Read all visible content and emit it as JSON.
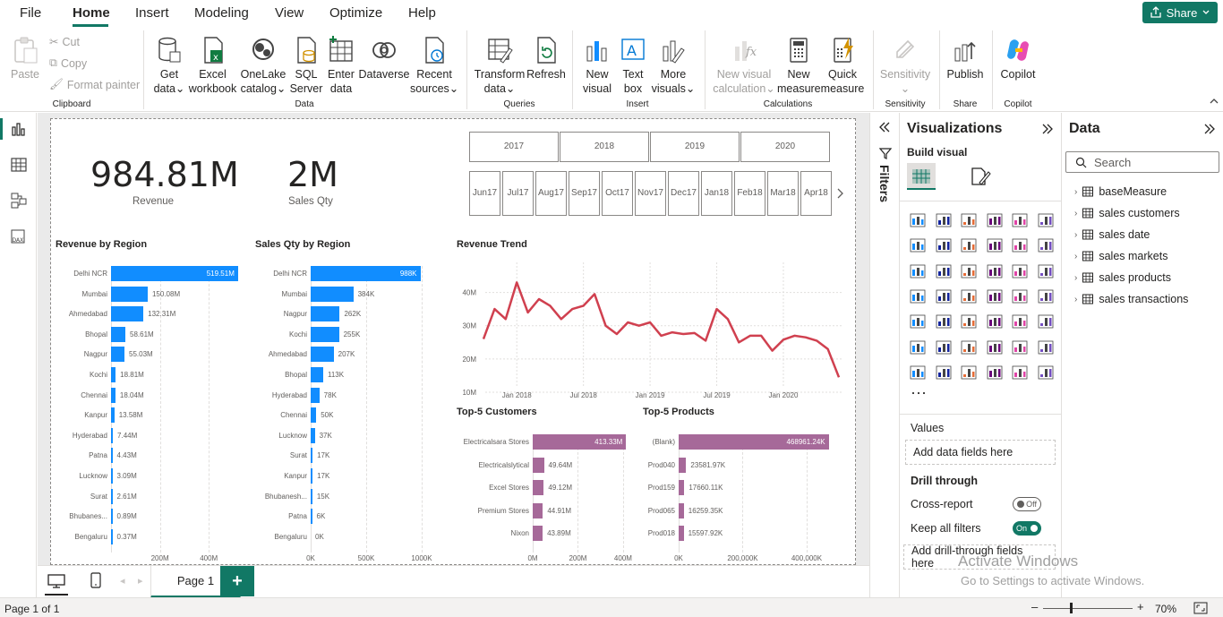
{
  "menu": {
    "items": [
      "File",
      "Home",
      "Insert",
      "Modeling",
      "View",
      "Optimize",
      "Help"
    ],
    "active": "Home",
    "share_label": "Share"
  },
  "ribbon": {
    "clipboard": {
      "paste": "Paste",
      "cut": "Cut",
      "copy": "Copy",
      "format_painter": "Format painter",
      "group": "Clipboard"
    },
    "data": {
      "get_data": [
        "Get",
        "data"
      ],
      "excel": [
        "Excel",
        "workbook"
      ],
      "onelake": [
        "OneLake",
        "catalog"
      ],
      "sql": [
        "SQL",
        "Server"
      ],
      "enter": [
        "Enter",
        "data"
      ],
      "dataverse": "Dataverse",
      "recent": [
        "Recent",
        "sources"
      ],
      "group": "Data"
    },
    "queries": {
      "transform": [
        "Transform",
        "data"
      ],
      "refresh": "Refresh",
      "group": "Queries"
    },
    "insert": {
      "new_visual": [
        "New",
        "visual"
      ],
      "text_box": [
        "Text",
        "box"
      ],
      "more_visuals": [
        "More",
        "visuals"
      ],
      "group": "Insert"
    },
    "calculations": {
      "new_visual_calc": [
        "New visual",
        "calculation"
      ],
      "new_measure": [
        "New",
        "measure"
      ],
      "quick_measure": [
        "Quick",
        "measure"
      ],
      "group": "Calculations"
    },
    "sensitivity": {
      "label": "Sensitivity",
      "group": "Sensitivity"
    },
    "share": {
      "publish": "Publish",
      "group": "Share"
    },
    "copilot": {
      "label": "Copilot",
      "group": "Copilot"
    }
  },
  "kpis": [
    {
      "value": "984.81M",
      "label": "Revenue"
    },
    {
      "value": "2M",
      "label": "Sales Qty"
    }
  ],
  "year_slicer": [
    "2017",
    "2018",
    "2019",
    "2020"
  ],
  "month_slicer": [
    [
      "Jun",
      "17"
    ],
    [
      "Jul",
      "17"
    ],
    [
      "Aug",
      "17"
    ],
    [
      "Sep",
      "17"
    ],
    [
      "Oct",
      "17"
    ],
    [
      "Nov",
      "17"
    ],
    [
      "Dec",
      "17"
    ],
    [
      "Jan",
      "18"
    ],
    [
      "Feb",
      "18"
    ],
    [
      "Mar",
      "18"
    ],
    [
      "Apr",
      "18"
    ]
  ],
  "chart_data": [
    {
      "type": "bar",
      "title": "Revenue by Region",
      "categories": [
        "Delhi NCR",
        "Mumbai",
        "Ahmedabad",
        "Bhopal",
        "Nagpur",
        "Kochi",
        "Chennai",
        "Kanpur",
        "Hyderabad",
        "Patna",
        "Lucknow",
        "Surat",
        "Bhubanes...",
        "Bengaluru"
      ],
      "values": [
        519.51,
        150.08,
        132.31,
        58.61,
        55.03,
        18.81,
        18.04,
        13.58,
        7.44,
        4.43,
        3.09,
        2.61,
        0.89,
        0.37
      ],
      "labels": [
        "519.51M",
        "150.08M",
        "132.31M",
        "58.61M",
        "55.03M",
        "18.81M",
        "18.04M",
        "13.58M",
        "7.44M",
        "4.43M",
        "3.09M",
        "2.61M",
        "0.89M",
        "0.37M"
      ],
      "xticks": [
        "200M",
        "400M"
      ],
      "xlim": [
        0,
        520
      ],
      "color": "#118DFF"
    },
    {
      "type": "bar",
      "title": "Sales Qty by Region",
      "categories": [
        "Delhi NCR",
        "Mumbai",
        "Nagpur",
        "Kochi",
        "Ahmedabad",
        "Bhopal",
        "Hyderabad",
        "Chennai",
        "Lucknow",
        "Surat",
        "Kanpur",
        "Bhubanesh...",
        "Patna",
        "Bengaluru"
      ],
      "values": [
        988,
        384,
        262,
        255,
        207,
        113,
        78,
        50,
        37,
        17,
        17,
        15,
        6,
        0
      ],
      "labels": [
        "988K",
        "384K",
        "262K",
        "255K",
        "207K",
        "113K",
        "78K",
        "50K",
        "37K",
        "17K",
        "17K",
        "15K",
        "6K",
        "0K"
      ],
      "xticks": [
        "0K",
        "500K",
        "1000K"
      ],
      "xlim": [
        0,
        1000
      ],
      "color": "#118DFF"
    },
    {
      "type": "line",
      "title": "Revenue Trend",
      "yticks": [
        "40M",
        "30M",
        "20M",
        "10M"
      ],
      "ylim": [
        10,
        45
      ],
      "xticks": [
        "Jan 2018",
        "Jul 2018",
        "Jan 2019",
        "Jul 2019",
        "Jan 2020"
      ],
      "x": [
        "2017-10",
        "2017-11",
        "2017-12",
        "2018-01",
        "2018-02",
        "2018-03",
        "2018-04",
        "2018-05",
        "2018-06",
        "2018-07",
        "2018-08",
        "2018-09",
        "2018-10",
        "2018-11",
        "2018-12",
        "2019-01",
        "2019-02",
        "2019-03",
        "2019-04",
        "2019-05",
        "2019-06",
        "2019-07",
        "2019-08",
        "2019-09",
        "2019-10",
        "2019-11",
        "2019-12",
        "2020-01",
        "2020-02",
        "2020-03",
        "2020-04",
        "2020-05",
        "2020-06"
      ],
      "values": [
        26,
        35,
        32,
        43,
        34,
        38,
        36,
        32,
        35,
        36,
        39.5,
        30,
        27.5,
        31,
        30,
        31,
        27,
        28,
        27.5,
        27.8,
        25.5,
        35,
        32,
        25,
        27,
        27,
        22.5,
        25.8,
        27,
        26.5,
        25.5,
        23,
        14.5
      ],
      "color": "#D0404F"
    },
    {
      "type": "bar",
      "title": "Top-5 Customers",
      "categories": [
        "Electricalsara Stores",
        "Electricalslytical",
        "Excel Stores",
        "Premium Stores",
        "Nixon"
      ],
      "values": [
        413.33,
        49.64,
        49.12,
        44.91,
        43.89
      ],
      "labels": [
        "413.33M",
        "49.64M",
        "49.12M",
        "44.91M",
        "43.89M"
      ],
      "xticks": [
        "0M",
        "200M",
        "400M"
      ],
      "xlim": [
        0,
        420
      ],
      "color": "#A66999"
    },
    {
      "type": "bar",
      "title": "Top-5 Products",
      "categories": [
        "(Blank)",
        "Prod040",
        "Prod159",
        "Prod065",
        "Prod018"
      ],
      "values": [
        468961.24,
        23581.97,
        17660.11,
        16259.35,
        15597.92
      ],
      "labels": [
        "468961.24K",
        "23581.97K",
        "17660.11K",
        "16259.35K",
        "15597.92K"
      ],
      "xticks": [
        "0K",
        "200,000K",
        "400,000K"
      ],
      "xlim": [
        0,
        470000
      ],
      "color": "#A66999"
    }
  ],
  "pages": {
    "current": "Page 1",
    "status": "Page 1 of 1"
  },
  "zoom": "70%",
  "filters_label": "Filters",
  "viz_pane": {
    "title": "Visualizations",
    "build_visual": "Build visual",
    "values_label": "Values",
    "values_placeholder": "Add data fields here",
    "drill_through": "Drill through",
    "cross_report": "Cross-report",
    "cross_report_state": "Off",
    "keep_filters": "Keep all filters",
    "keep_filters_state": "On",
    "drill_placeholder": "Add drill-through fields here"
  },
  "data_pane": {
    "title": "Data",
    "search_placeholder": "Search",
    "tables": [
      "baseMeasure",
      "sales customers",
      "sales date",
      "sales markets",
      "sales products",
      "sales transactions"
    ]
  },
  "watermark": {
    "line1": "Activate Windows",
    "line2": "Go to Settings to activate Windows."
  }
}
